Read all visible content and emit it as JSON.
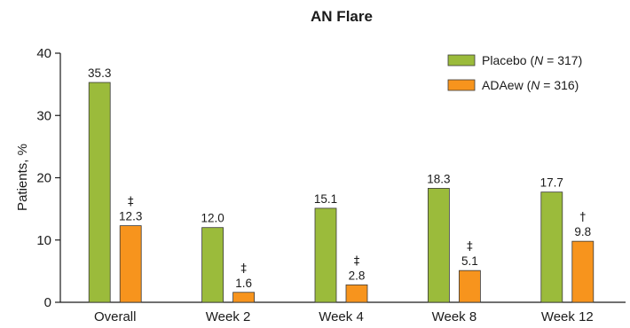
{
  "chart_data": {
    "type": "bar",
    "title": "AN Flare",
    "ylabel": "Patients, %",
    "xlabel": "",
    "ylim": [
      0,
      40
    ],
    "yticks": [
      0,
      10,
      20,
      30,
      40
    ],
    "categories": [
      "Overall",
      "Week 2",
      "Week 4",
      "Week 8",
      "Week 12"
    ],
    "series": [
      {
        "name": "Placebo (N = 317)",
        "name_parts": [
          "Placebo (",
          "N",
          " = 317)"
        ],
        "color": "#9bbb3b",
        "values": [
          35.3,
          12.0,
          15.1,
          18.3,
          17.7
        ],
        "labels": [
          "35.3",
          "12.0",
          "15.1",
          "18.3",
          "17.7"
        ],
        "markers": [
          "",
          "",
          "",
          "",
          ""
        ]
      },
      {
        "name": "ADAew (N = 316)",
        "name_parts": [
          "ADAew (",
          "N",
          " = 316)"
        ],
        "color": "#f7941d",
        "values": [
          12.3,
          1.6,
          2.8,
          5.1,
          9.8
        ],
        "labels": [
          "12.3",
          "1.6",
          "2.8",
          "5.1",
          "9.8"
        ],
        "markers": [
          "‡",
          "‡",
          "‡",
          "‡",
          "†"
        ]
      }
    ],
    "legend_position": "top-right",
    "grid": false
  }
}
